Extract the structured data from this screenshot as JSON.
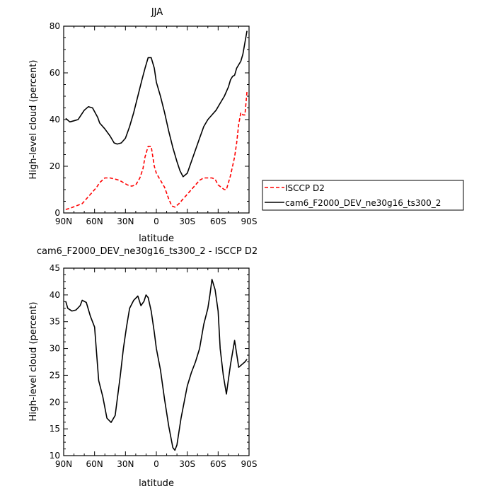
{
  "chart_data": [
    {
      "type": "line",
      "title": "JJA",
      "xlabel": "latitude",
      "ylabel": "High-level cloud (percent)",
      "xlim": [
        90,
        -90
      ],
      "ylim": [
        0,
        80
      ],
      "x_ticks": [
        90,
        60,
        30,
        0,
        -30,
        -60,
        -90
      ],
      "x_tick_labels": [
        "90N",
        "60N",
        "30N",
        "0",
        "30S",
        "60S",
        "90S"
      ],
      "y_ticks": [
        0,
        20,
        40,
        60,
        80
      ],
      "y_tick_labels": [
        "0",
        "20",
        "40",
        "60",
        "80"
      ],
      "grid": false,
      "legend_position": "right",
      "series": [
        {
          "name": "ISCCP D2",
          "color": "#ff0000",
          "dash": "dashed",
          "x": [
            88,
            84,
            78,
            72,
            66,
            62,
            58,
            55,
            50,
            45,
            40,
            36,
            32,
            28,
            24,
            20,
            16,
            13,
            11,
            8,
            5,
            2,
            0,
            -4,
            -8,
            -12,
            -15,
            -18,
            -22,
            -26,
            -30,
            -34,
            -38,
            -42,
            -46,
            -50,
            -54,
            -57,
            -60,
            -63,
            -66,
            -68,
            -72,
            -76,
            -78,
            -80,
            -82,
            -84,
            -86,
            -88
          ],
          "y": [
            1.5,
            2,
            3,
            4,
            7,
            9,
            11,
            13,
            15,
            15,
            14.5,
            14,
            13,
            12,
            11.5,
            12,
            15,
            19,
            24,
            28.5,
            28.5,
            20,
            17,
            14,
            11,
            6,
            3,
            2.5,
            4,
            6,
            8,
            10,
            12,
            14,
            15,
            15,
            15,
            14.5,
            12,
            11,
            10,
            10,
            16,
            24,
            30,
            38,
            43,
            42,
            42,
            52
          ]
        },
        {
          "name": "cam6_F2000_DEV_ne30g16_ts300_2",
          "color": "#000000",
          "dash": "solid",
          "x": [
            88,
            84,
            80,
            76,
            73,
            70,
            66,
            62,
            57,
            55,
            50,
            45,
            41,
            38,
            34,
            30,
            26,
            22,
            18,
            14,
            11,
            8,
            5,
            2,
            0,
            -4,
            -8,
            -12,
            -16,
            -20,
            -23,
            -26,
            -30,
            -34,
            -38,
            -42,
            -46,
            -50,
            -54,
            -58,
            -62,
            -66,
            -70,
            -72,
            -74,
            -76,
            -78,
            -80,
            -82,
            -84,
            -86,
            -88
          ],
          "y": [
            40.5,
            39,
            39.5,
            40,
            42,
            44,
            45.5,
            45,
            41,
            38.5,
            36,
            33,
            30,
            29.5,
            30,
            32,
            37,
            43,
            50,
            57,
            62,
            66.5,
            66.5,
            62,
            56,
            50,
            43,
            35,
            28,
            22,
            18,
            15.5,
            17,
            22,
            27,
            32,
            37,
            40,
            42,
            44,
            47,
            50,
            54,
            57,
            58.5,
            59,
            62,
            63.5,
            65,
            68,
            73,
            78
          ]
        }
      ]
    },
    {
      "type": "line",
      "title": "cam6_F2000_DEV_ne30g16_ts300_2 - ISCCP D2",
      "xlabel": "latitude",
      "ylabel": "High-level cloud (percent)",
      "xlim": [
        90,
        -90
      ],
      "ylim": [
        10,
        45
      ],
      "x_ticks": [
        90,
        60,
        30,
        0,
        -30,
        -60,
        -90
      ],
      "x_tick_labels": [
        "90N",
        "60N",
        "30N",
        "0",
        "30S",
        "60S",
        "90S"
      ],
      "y_ticks": [
        10,
        15,
        20,
        25,
        30,
        35,
        40,
        45
      ],
      "y_tick_labels": [
        "10",
        "15",
        "20",
        "25",
        "30",
        "35",
        "40",
        "45"
      ],
      "grid": false,
      "series": [
        {
          "color": "#000000",
          "dash": "solid",
          "x": [
            88,
            86,
            82,
            78,
            74,
            72,
            68,
            64,
            60,
            56,
            52,
            48,
            44,
            40,
            38,
            35,
            32,
            29,
            26,
            22,
            18,
            15,
            12,
            10,
            8,
            5,
            2,
            0,
            -4,
            -8,
            -12,
            -16,
            -18,
            -20,
            -22,
            -24,
            -27,
            -30,
            -34,
            -38,
            -42,
            -46,
            -50,
            -52,
            -54,
            -57,
            -60,
            -62,
            -65,
            -68,
            -72,
            -76,
            -80,
            -83,
            -86,
            -88
          ],
          "y": [
            38.8,
            37.5,
            37,
            37.2,
            38,
            39,
            38.6,
            36,
            34,
            24,
            21,
            17,
            16.2,
            17.5,
            20.5,
            25,
            30,
            34,
            37.5,
            39,
            39.8,
            38,
            38.8,
            40,
            39.5,
            37,
            33,
            30,
            26,
            20.5,
            15.5,
            11.5,
            11,
            12,
            14.5,
            17,
            20,
            23,
            25.5,
            27.5,
            30,
            34.5,
            37.5,
            40,
            42.9,
            41,
            37,
            30,
            25,
            21.5,
            27,
            31.5,
            26.5,
            27,
            27.5,
            28
          ]
        }
      ]
    }
  ]
}
